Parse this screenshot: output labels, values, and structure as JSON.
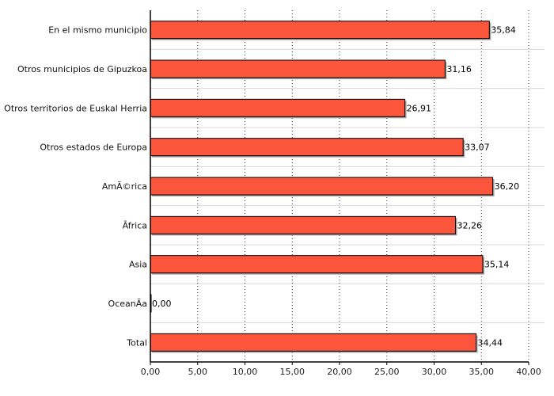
{
  "chart_data": {
    "type": "bar",
    "orientation": "horizontal",
    "categories": [
      "En el mismo municipio",
      "Otros municipios de Gipuzkoa",
      "Otros territorios de Euskal Herria",
      "Otros estados de Europa",
      "AmÃ©rica",
      "Ãfrica",
      "Asia",
      "OceanÃ­a",
      "Total"
    ],
    "values": [
      35.84,
      31.16,
      26.91,
      33.07,
      36.2,
      32.26,
      35.14,
      0.0,
      34.44
    ],
    "value_labels": [
      "35,84",
      "31,16",
      "26,91",
      "33,07",
      "36,20",
      "32,26",
      "35,14",
      "0,00",
      "34,44"
    ],
    "xlim": [
      0,
      40
    ],
    "x_ticks": [
      0,
      5,
      10,
      15,
      20,
      25,
      30,
      35,
      40
    ],
    "x_tick_labels": [
      "0,00",
      "5,00",
      "10,00",
      "15,00",
      "20,00",
      "25,00",
      "30,00",
      "35,00",
      "40,00"
    ],
    "grid": "vertical-dotted",
    "bar_color": "#fb553b",
    "shadow_color": "#a0a0a0",
    "title": "",
    "xlabel": "",
    "ylabel": ""
  }
}
